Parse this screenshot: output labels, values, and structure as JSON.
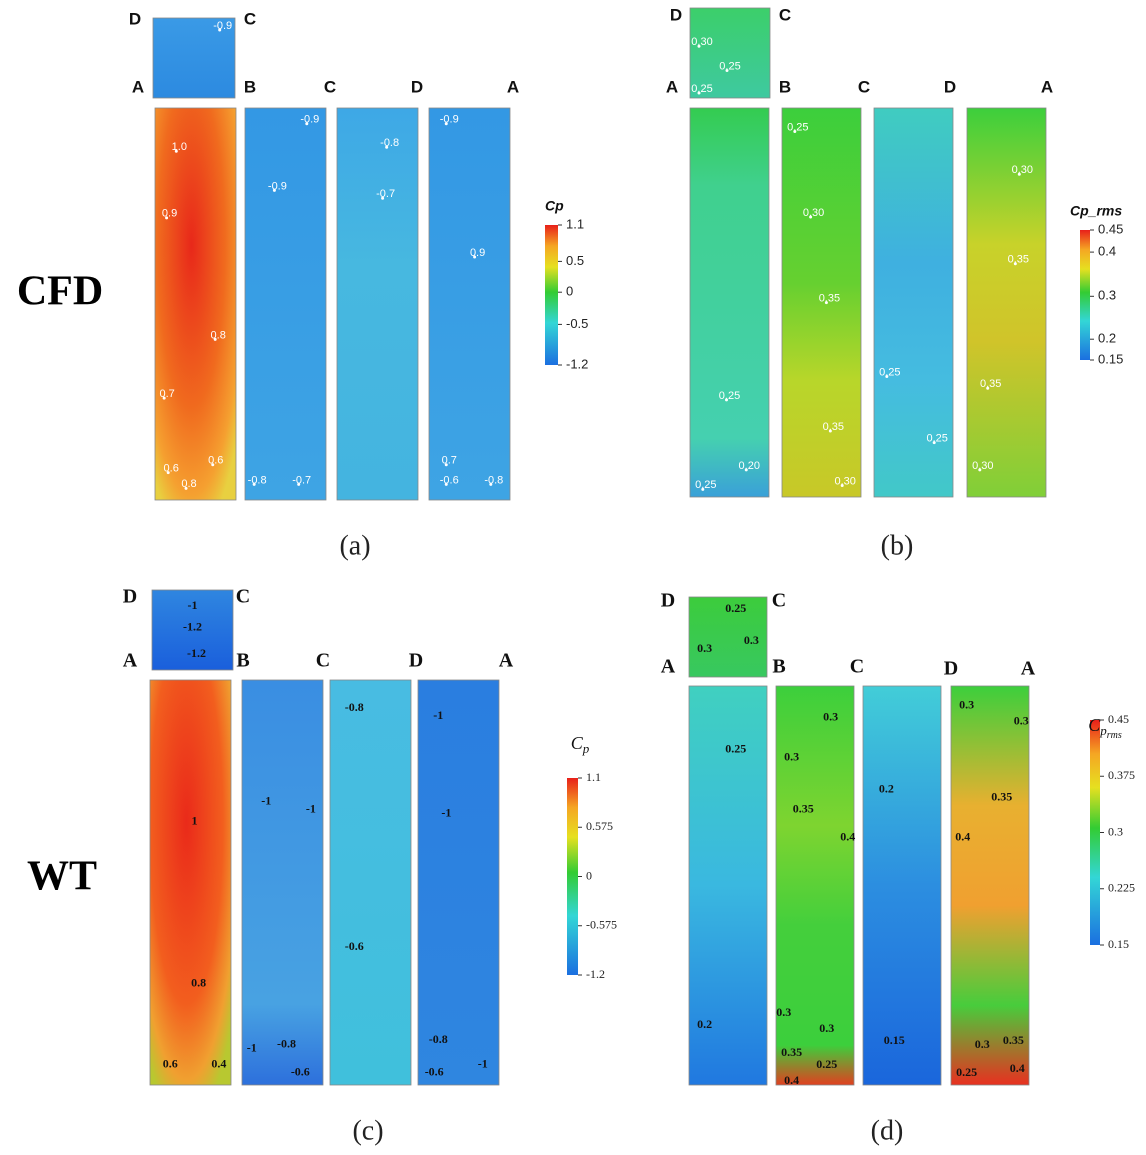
{
  "row_labels": [
    "CFD",
    "WT"
  ],
  "panels": [
    {
      "caption": "(a)",
      "corner_labels": [
        "D",
        "C",
        "A",
        "B",
        "C",
        "D",
        "A"
      ],
      "colorbar": {
        "title": "Cp",
        "ticks": [
          "1.1",
          "0.5",
          "0",
          "-0.5",
          "-1.2"
        ]
      },
      "faces": [
        {
          "contour_labels": [
            "-0.9"
          ]
        },
        {
          "contour_labels": [
            "1.0",
            "0.9",
            "0.8",
            "0.7",
            "0.6",
            "0.6",
            "0.8"
          ]
        },
        {
          "contour_labels": [
            "-0.9",
            "-0.9",
            "-0.8",
            "-0.7"
          ]
        },
        {
          "contour_labels": [
            "-0.8",
            "-0.7"
          ]
        },
        {
          "contour_labels": [
            "-0.9",
            "0.9",
            "0.7",
            "-0.6",
            "-0.8"
          ]
        }
      ]
    },
    {
      "caption": "(b)",
      "corner_labels": [
        "D",
        "C",
        "A",
        "B",
        "C",
        "D",
        "A"
      ],
      "colorbar": {
        "title": "Cp_rms",
        "ticks": [
          "0.45",
          "0.4",
          "0.3",
          "0.2",
          "0.15"
        ]
      },
      "faces": [
        {
          "contour_labels": [
            "0.30",
            "0.25",
            "0.25"
          ]
        },
        {
          "contour_labels": [
            "0.25",
            "0.20",
            "0.25"
          ]
        },
        {
          "contour_labels": [
            "0.25",
            "0.30",
            "0.35",
            "0.35",
            "0.30"
          ]
        },
        {
          "contour_labels": [
            "0.25",
            "0.25"
          ]
        },
        {
          "contour_labels": [
            "0.30",
            "0.35",
            "0.35",
            "0.30"
          ]
        }
      ]
    },
    {
      "caption": "(c)",
      "corner_labels": [
        "D",
        "C",
        "A",
        "B",
        "C",
        "D",
        "A"
      ],
      "colorbar": {
        "title": "C",
        "title_sub": "p",
        "ticks": [
          "1.1",
          "0.575",
          "0",
          "-0.575",
          "-1.2"
        ]
      },
      "faces": [
        {
          "contour_labels": [
            "-1",
            "-1.2",
            "-1.2"
          ]
        },
        {
          "contour_labels": [
            "1",
            "0.8",
            "0.6",
            "0.4"
          ]
        },
        {
          "contour_labels": [
            "-1",
            "-1",
            "-1",
            "-0.8",
            "-0.6"
          ]
        },
        {
          "contour_labels": [
            "-0.8",
            "-0.6"
          ]
        },
        {
          "contour_labels": [
            "-1",
            "-1",
            "-0.8",
            "-0.6",
            "-1"
          ]
        }
      ]
    },
    {
      "caption": "(d)",
      "corner_labels": [
        "D",
        "C",
        "A",
        "B",
        "C",
        "D",
        "A"
      ],
      "colorbar": {
        "title": "C",
        "title_sub": "p",
        "title_subsub": "rms",
        "ticks": [
          "0.45",
          "0.375",
          "0.3",
          "0.225",
          "0.15"
        ]
      },
      "faces": [
        {
          "contour_labels": [
            "0.25",
            "0.3",
            "0.3"
          ]
        },
        {
          "contour_labels": [
            "0.25",
            "0.2"
          ]
        },
        {
          "contour_labels": [
            "0.3",
            "0.3",
            "0.35",
            "0.4",
            "0.3",
            "0.3",
            "0.35",
            "0.25",
            "0.4"
          ]
        },
        {
          "contour_labels": [
            "0.2",
            "0.15"
          ]
        },
        {
          "contour_labels": [
            "0.3",
            "0.3",
            "0.35",
            "0.4",
            "0.3",
            "0.35",
            "0.25",
            "0.4"
          ]
        }
      ]
    }
  ]
}
